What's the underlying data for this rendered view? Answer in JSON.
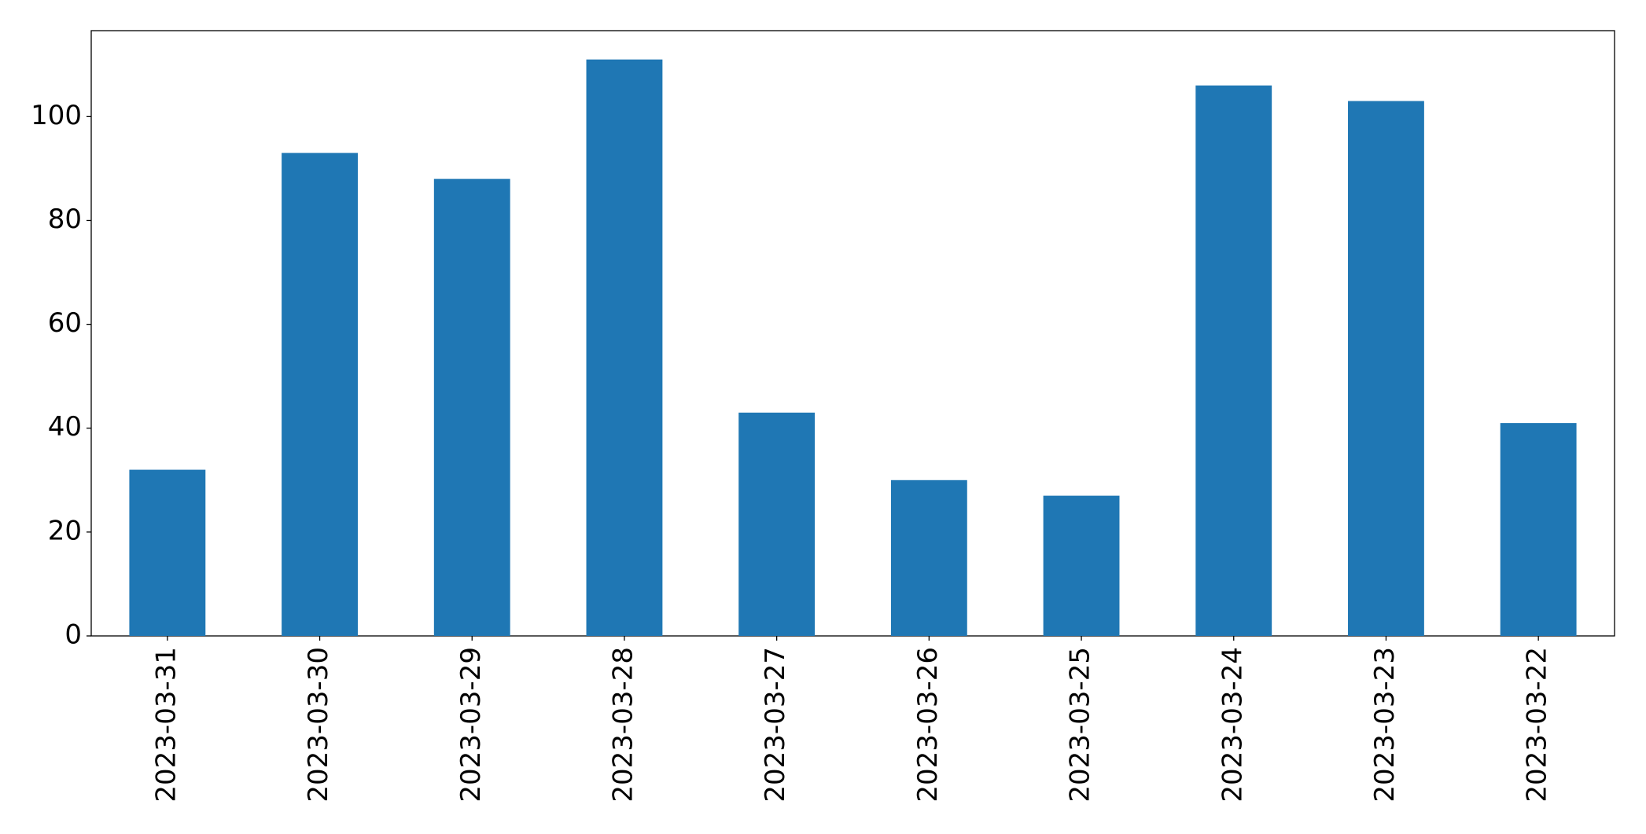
{
  "chart_data": {
    "type": "bar",
    "categories": [
      "2023-03-31",
      "2023-03-30",
      "2023-03-29",
      "2023-03-28",
      "2023-03-27",
      "2023-03-26",
      "2023-03-25",
      "2023-03-24",
      "2023-03-23",
      "2023-03-22"
    ],
    "values": [
      32,
      93,
      88,
      111,
      43,
      30,
      27,
      106,
      103,
      41
    ],
    "color": "#1f77b4",
    "ylim": [
      0,
      116.55
    ],
    "yticks": [
      0,
      20,
      40,
      60,
      80,
      100
    ],
    "grid": false
  }
}
